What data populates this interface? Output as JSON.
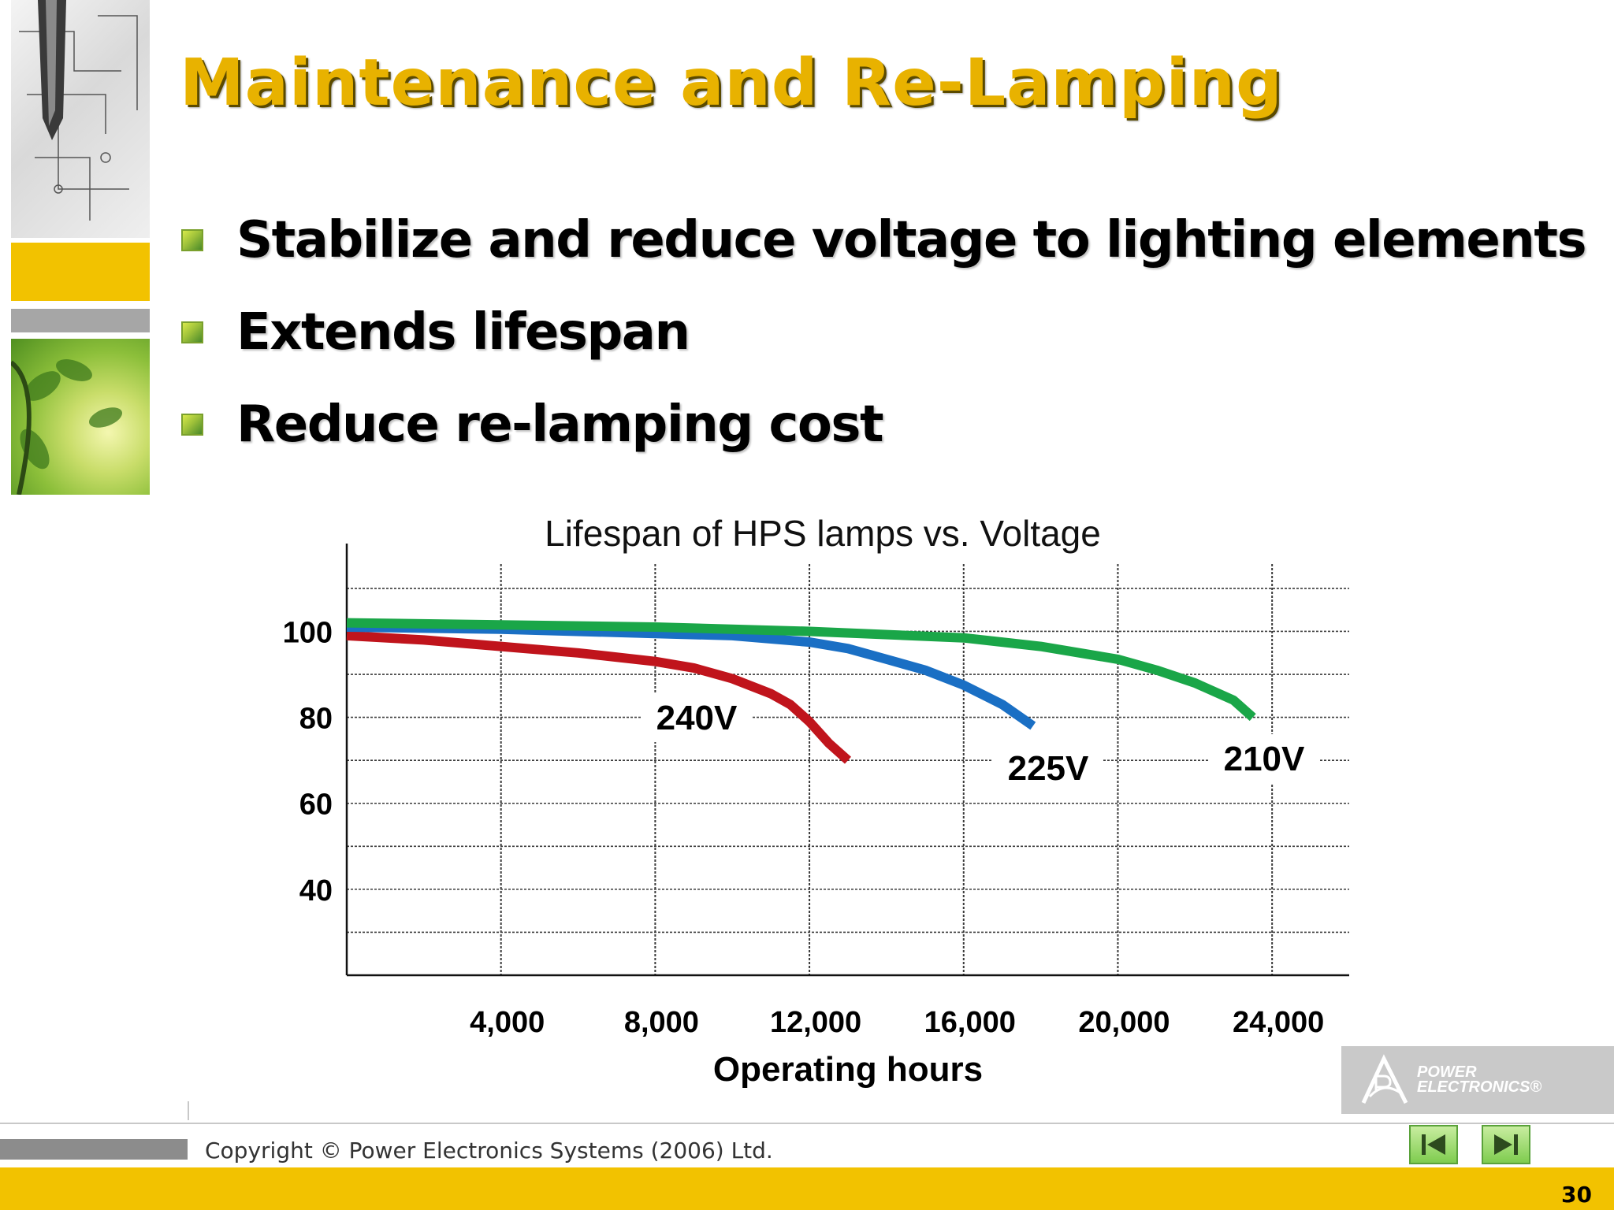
{
  "slide": {
    "title": "Maintenance and Re-Lamping",
    "bullets": [
      "Stabilize and reduce voltage to lighting elements",
      "Extends lifespan",
      "Reduce re-lamping cost"
    ],
    "footer": {
      "copyright": "Copyright © Power Electronics Systems (2006) Ltd.",
      "page_number": "30"
    },
    "logo": {
      "line1": "POWER",
      "line2": "ELECTRONICS®"
    },
    "nav": {
      "first": "first-slide",
      "last": "last-slide"
    },
    "colors": {
      "title": "#e8b200",
      "band": "#f2c200",
      "grid": "#3a3a3a"
    }
  },
  "chart_data": {
    "type": "line",
    "title": "Lifespan of HPS lamps vs. Voltage",
    "xlabel": "Operating hours",
    "ylabel": "",
    "xlim": [
      0,
      26000
    ],
    "ylim": [
      20,
      112
    ],
    "x_ticks": [
      4000,
      8000,
      12000,
      16000,
      20000,
      24000
    ],
    "x_tick_labels": [
      "4,000",
      "8,000",
      "12,000",
      "16,000",
      "20,000",
      "24,000"
    ],
    "y_ticks": [
      40,
      60,
      80,
      100
    ],
    "y_tick_labels": [
      "40",
      "60",
      "80",
      "100"
    ],
    "grid": true,
    "series": [
      {
        "name": "240V",
        "color": "#c0141c",
        "x": [
          0,
          2000,
          4000,
          6000,
          8000,
          9000,
          10000,
          11000,
          11500,
          12000,
          12500,
          13000
        ],
        "y": [
          99,
          98,
          96.5,
          95,
          93,
          91.5,
          89,
          85.5,
          83,
          79,
          74,
          70
        ]
      },
      {
        "name": "225V",
        "color": "#1a6fc4",
        "x": [
          0,
          4000,
          8000,
          10000,
          12000,
          13000,
          14000,
          15000,
          16000,
          17000,
          17800
        ],
        "y": [
          101,
          100.5,
          99.5,
          99,
          97.5,
          96,
          93.5,
          91,
          87.5,
          83,
          78
        ]
      },
      {
        "name": "210V",
        "color": "#1aa648",
        "x": [
          0,
          4000,
          8000,
          12000,
          16000,
          18000,
          20000,
          21000,
          22000,
          23000,
          23500
        ],
        "y": [
          102,
          101.5,
          101,
          100,
          98.5,
          96.5,
          93.5,
          91,
          88,
          84,
          80
        ]
      }
    ]
  }
}
